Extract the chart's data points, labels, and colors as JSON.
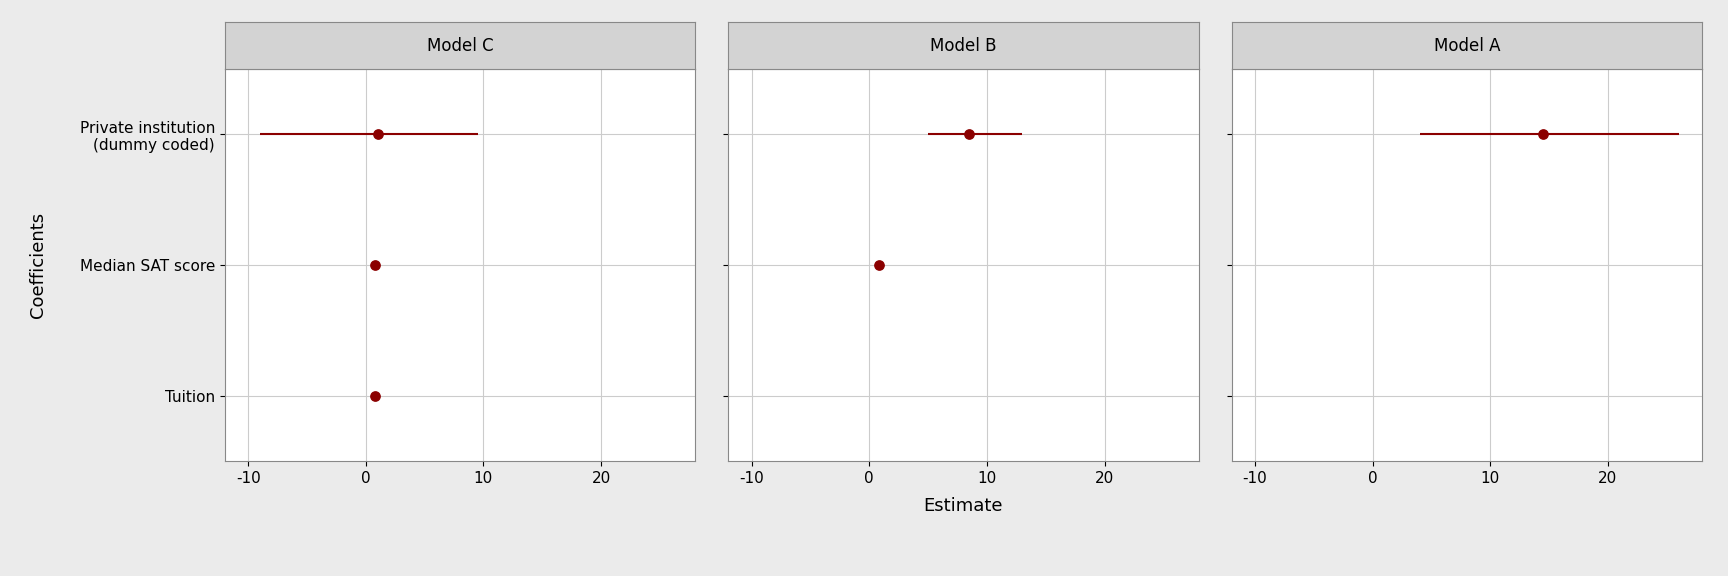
{
  "models": [
    "Model C",
    "Model B",
    "Model A"
  ],
  "variables_top_to_bottom": [
    "Private institution\n(dummy coded)",
    "Median SAT score",
    "Tuition"
  ],
  "estimates": {
    "Model C": {
      "Private institution\n(dummy coded)": 1.0,
      "Median SAT score": 0.8,
      "Tuition": 0.8
    },
    "Model B": {
      "Private institution\n(dummy coded)": 8.5,
      "Median SAT score": 0.8,
      "Tuition": null
    },
    "Model A": {
      "Private institution\n(dummy coded)": 14.5,
      "Median SAT score": null,
      "Tuition": null
    }
  },
  "ci_low": {
    "Model C": {
      "Private institution\n(dummy coded)": -9.0,
      "Median SAT score": 0.78,
      "Tuition": 0.78
    },
    "Model B": {
      "Private institution\n(dummy coded)": 5.0,
      "Median SAT score": 0.78,
      "Tuition": null
    },
    "Model A": {
      "Private institution\n(dummy coded)": 4.0,
      "Median SAT score": null,
      "Tuition": null
    }
  },
  "ci_high": {
    "Model C": {
      "Private institution\n(dummy coded)": 9.5,
      "Median SAT score": 0.82,
      "Tuition": 0.82
    },
    "Model B": {
      "Private institution\n(dummy coded)": 13.0,
      "Median SAT score": 0.82,
      "Tuition": null
    },
    "Model A": {
      "Private institution\n(dummy coded)": 26.0,
      "Median SAT score": null,
      "Tuition": null
    }
  },
  "xlim": [
    -12,
    28
  ],
  "xticks": [
    -10,
    0,
    10,
    20
  ],
  "color_dot": "#8B0000",
  "color_line": "#8B0000",
  "bg_panel": "#FFFFFF",
  "bg_figure": "#EBEBEB",
  "bg_strip": "#D3D3D3",
  "grid_color": "#CCCCCC",
  "xlabel": "Estimate",
  "ylabel": "Coefficients",
  "dot_size": 45,
  "line_width": 1.5,
  "strip_fontsize": 12,
  "axis_fontsize": 13,
  "tick_fontsize": 11,
  "ylabel_fontsize": 13
}
